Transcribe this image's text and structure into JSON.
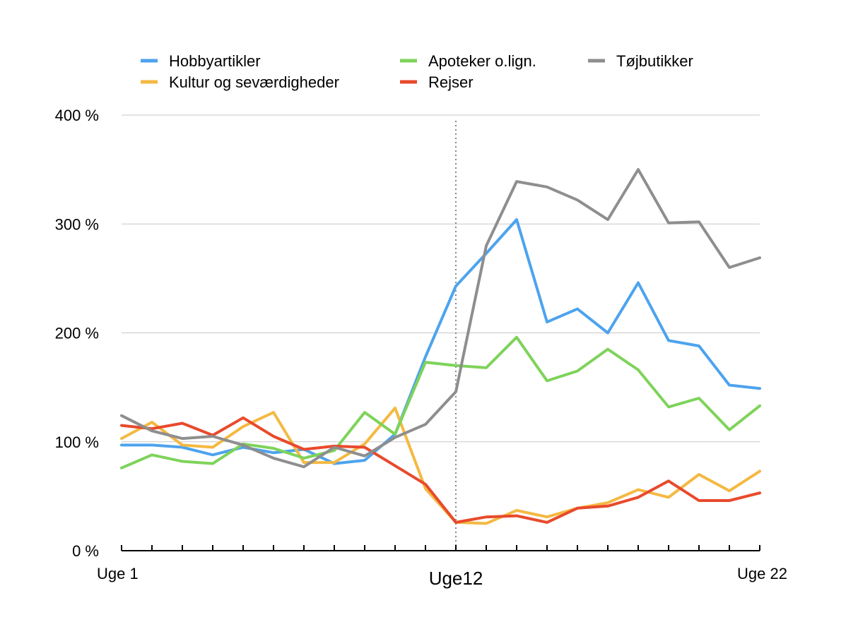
{
  "chart_data": {
    "type": "line",
    "x": [
      1,
      2,
      3,
      4,
      5,
      6,
      7,
      8,
      9,
      10,
      11,
      12,
      13,
      14,
      15,
      16,
      17,
      18,
      19,
      20,
      21,
      22
    ],
    "x_tick_labels": [
      {
        "x": 1,
        "label": "Uge 1"
      },
      {
        "x": 12,
        "label": "Uge12"
      },
      {
        "x": 22,
        "label": "Uge 22"
      }
    ],
    "xlim": [
      1,
      22
    ],
    "ylim": [
      0,
      400
    ],
    "y_ticks": [
      {
        "value": 0,
        "label": "0 %"
      },
      {
        "value": 100,
        "label": "100 %"
      },
      {
        "value": 200,
        "label": "200 %"
      },
      {
        "value": 300,
        "label": "300 %"
      },
      {
        "value": 400,
        "label": "400 %"
      }
    ],
    "grid": "horizontal",
    "legend_position": "top",
    "marker_line_x": 12,
    "series": [
      {
        "name": "Hobbyartikler",
        "color": "#4da3ee",
        "values": [
          97,
          97,
          95,
          88,
          95,
          90,
          93,
          80,
          83,
          107,
          178,
          243,
          273,
          304,
          210,
          222,
          200,
          246,
          193,
          188,
          152,
          149
        ]
      },
      {
        "name": "Kultur og seværdigheder",
        "color": "#f4b942",
        "values": [
          103,
          118,
          97,
          95,
          114,
          127,
          81,
          81,
          98,
          131,
          57,
          26,
          25,
          37,
          31,
          39,
          44,
          56,
          49,
          70,
          55,
          73
        ]
      },
      {
        "name": "Apoteker o.lign.",
        "color": "#7ed35a",
        "values": [
          76,
          88,
          82,
          80,
          98,
          94,
          85,
          92,
          127,
          107,
          173,
          170,
          168,
          196,
          156,
          165,
          185,
          166,
          132,
          140,
          111,
          133
        ]
      },
      {
        "name": "Rejser",
        "color": "#e84a2c",
        "values": [
          115,
          112,
          117,
          106,
          122,
          105,
          93,
          96,
          95,
          78,
          61,
          26,
          31,
          32,
          26,
          39,
          41,
          49,
          64,
          46,
          46,
          53
        ]
      },
      {
        "name": "Tøjbutikker",
        "color": "#8e8e8e",
        "values": [
          124,
          110,
          103,
          105,
          97,
          85,
          77,
          95,
          87,
          104,
          116,
          146,
          280,
          339,
          334,
          322,
          304,
          350,
          301,
          302,
          260,
          269
        ]
      }
    ]
  }
}
